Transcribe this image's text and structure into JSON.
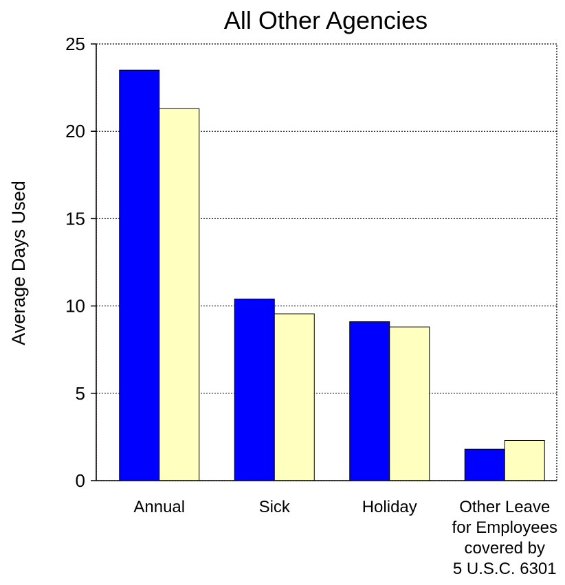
{
  "chart_data": {
    "type": "bar",
    "title": "All Other Agencies",
    "xlabel": "",
    "ylabel": "Average Days Used",
    "ylim": [
      0,
      25
    ],
    "yticks": [
      0,
      5,
      10,
      15,
      20,
      25
    ],
    "grid": true,
    "categories": [
      [
        "Annual"
      ],
      [
        "Sick"
      ],
      [
        "Holiday"
      ],
      [
        "Other Leave",
        "for Employees",
        "covered by",
        "5 U.S.C. 6301"
      ]
    ],
    "series": [
      {
        "color": "#0000ff",
        "values": [
          23.5,
          10.4,
          9.1,
          1.8
        ]
      },
      {
        "color": "#ffffc0",
        "values": [
          21.3,
          9.55,
          8.8,
          2.3
        ]
      }
    ]
  }
}
